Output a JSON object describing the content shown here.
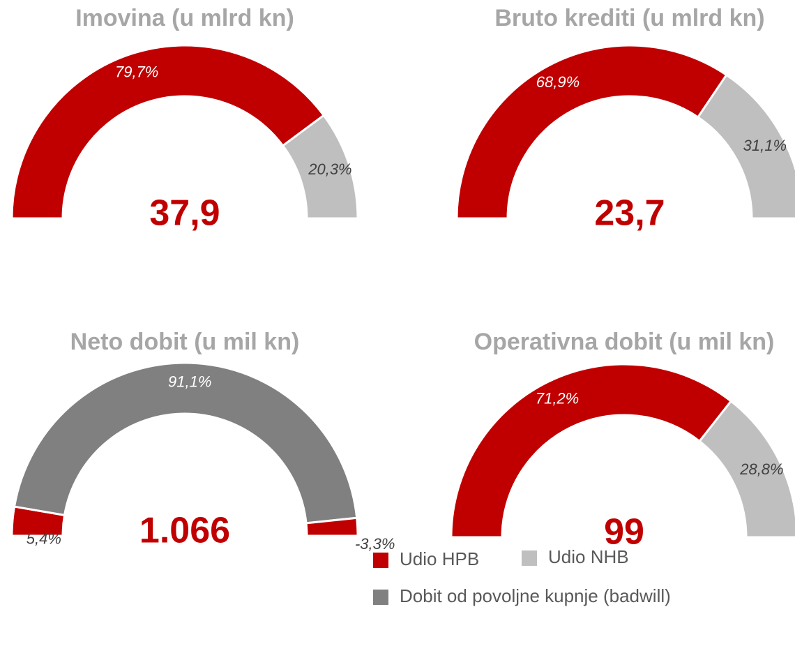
{
  "chart_data": [
    {
      "type": "half-donut",
      "title": "Imovina (u mlrd kn)",
      "center_label": "37,9",
      "values": [
        79.7,
        20.3
      ],
      "value_labels": [
        "79,7%",
        "20,3%"
      ],
      "colors": [
        "#c00000",
        "#bfbfbf"
      ]
    },
    {
      "type": "half-donut",
      "title": "Bruto krediti (u mlrd kn)",
      "center_label": "23,7",
      "values": [
        68.9,
        31.1
      ],
      "value_labels": [
        "68,9%",
        "31,1%"
      ],
      "colors": [
        "#c00000",
        "#bfbfbf"
      ]
    },
    {
      "type": "half-donut",
      "title": "Neto dobit (u mil kn)",
      "center_label": "1.066",
      "values": [
        5.4,
        91.1,
        -3.3
      ],
      "value_labels": [
        "5,4%",
        "91,1%",
        "-3,3%"
      ],
      "colors": [
        "#c00000",
        "#808080",
        "#c00000"
      ]
    },
    {
      "type": "half-donut",
      "title": "Operativna dobit (u mil kn)",
      "center_label": "99",
      "values": [
        71.2,
        28.8
      ],
      "value_labels": [
        "71,2%",
        "28,8%"
      ],
      "colors": [
        "#c00000",
        "#bfbfbf"
      ]
    }
  ],
  "legend": {
    "items": [
      {
        "name": "Udio HPB",
        "color": "#c00000"
      },
      {
        "name": "Udio NHB",
        "color": "#bfbfbf"
      },
      {
        "name": "Dobit od povoljne kupnje (badwill)",
        "color": "#808080"
      }
    ]
  }
}
